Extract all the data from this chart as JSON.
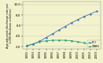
{
  "years": [
    1992,
    1993,
    1994,
    1995,
    1996,
    1997,
    1998,
    1999,
    2000,
    2001,
    2002,
    2003
  ],
  "pci": [
    2.1,
    2.5,
    3.0,
    3.7,
    4.4,
    5.1,
    5.8,
    6.5,
    7.1,
    7.7,
    8.2,
    8.7
  ],
  "cabg": [
    2.2,
    2.5,
    2.9,
    3.1,
    3.2,
    3.2,
    3.2,
    3.1,
    2.9,
    2.7,
    2.4,
    2.1
  ],
  "pci_color": "#3366bb",
  "cabg_color": "#229977",
  "bg_color": "#f2f2cc",
  "plot_bg": "#f2f2cc",
  "ylim": [
    1.5,
    10.5
  ],
  "ytick_vals": [
    2.0,
    4.0,
    6.0,
    8.0,
    10.0
  ],
  "ytick_labels": [
    "2.0",
    "4.0",
    "6.0",
    "8.0",
    "10.0"
  ],
  "xlim_left": 1991.3,
  "xlim_right": 2003.7,
  "tick_fontsize": 2.8,
  "ylabel_fontsize": 2.5,
  "legend_fontsize": 2.5,
  "legend_labels": [
    "PCI",
    "CABG"
  ],
  "ylabel": "Age-adjusted discharge rate per\n1,000 Medicare enrollees",
  "linewidth": 0.55,
  "markersize": 1.3
}
